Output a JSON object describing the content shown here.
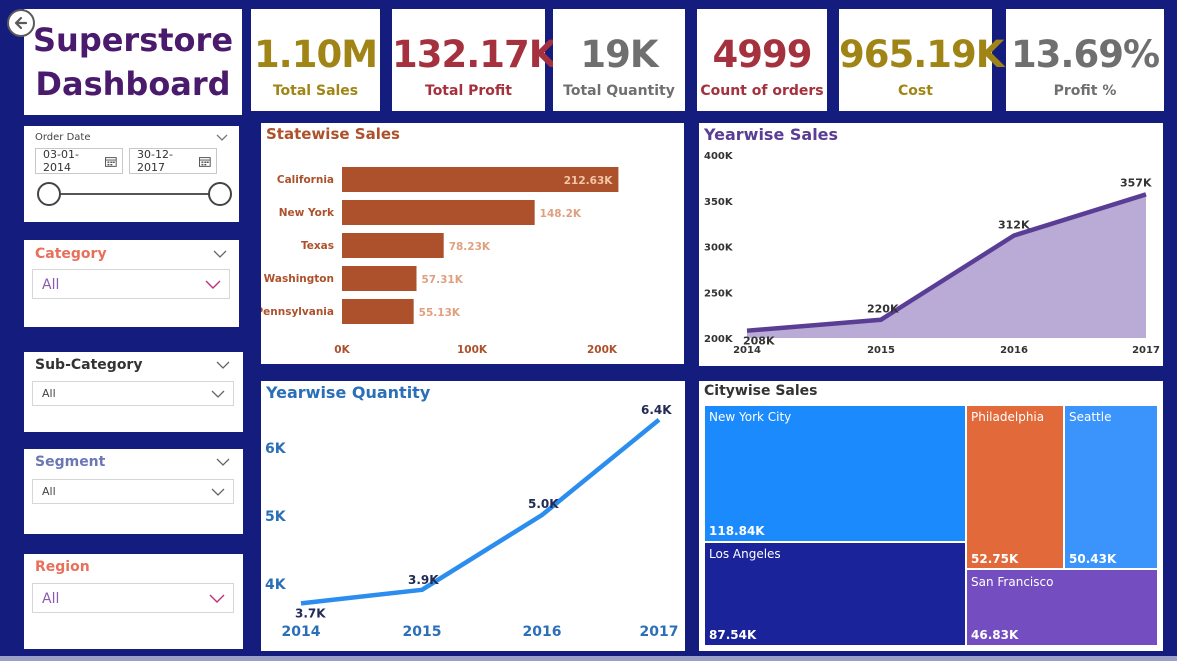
{
  "title": {
    "line1": "Superstore",
    "line2": "Dashboard"
  },
  "kpis": [
    {
      "value": "1.10M",
      "label": "Total Sales",
      "color": "#a08516"
    },
    {
      "value": "132.17K",
      "label": "Total Profit",
      "color": "#a4313d"
    },
    {
      "value": "19K",
      "label": "Total Quantity",
      "color": "#6f6f6f"
    },
    {
      "value": "4999",
      "label": "Count of orders",
      "color": "#a4313d"
    },
    {
      "value": "965.19K",
      "label": "Cost",
      "color": "#a08516"
    },
    {
      "value": "13.69%",
      "label": "Profit %",
      "color": "#6f6f6f"
    }
  ],
  "date_slicer": {
    "title": "Order Date",
    "start": "03-01-2014",
    "end": "30-12-2017"
  },
  "slicers": {
    "category": {
      "title": "Category",
      "value": "All",
      "color": "#e8705a"
    },
    "subcategory": {
      "title": "Sub-Category",
      "value": "All",
      "color": "#333333"
    },
    "segment": {
      "title": "Segment",
      "value": "All",
      "color": "#6b78b4"
    },
    "region": {
      "title": "Region",
      "value": "All",
      "color": "#e8705a"
    }
  },
  "icons": {
    "back": "back-arrow-icon",
    "calendar": "calendar-icon",
    "dropdown": "chevron-down-icon"
  },
  "charts": {
    "statewise": {
      "title": "Statewise Sales"
    },
    "yearwise_sales": {
      "title": "Yearwise Sales"
    },
    "yearwise_quantity": {
      "title": "Yearwise Quantity"
    },
    "citywise": {
      "title": "Citywise Sales"
    }
  },
  "chart_data": [
    {
      "type": "bar",
      "orientation": "horizontal",
      "title": "Statewise Sales",
      "categories": [
        "California",
        "New York",
        "Texas",
        "Washington",
        "Pennsylvania"
      ],
      "values": [
        212.63,
        148.2,
        78.23,
        57.31,
        55.13
      ],
      "value_labels": [
        "212.63K",
        "148.2K",
        "78.23K",
        "57.31K",
        "55.13K"
      ],
      "xticks": [
        "0K",
        "100K",
        "200K"
      ],
      "xlim": [
        0,
        230
      ],
      "color": "#ac512b"
    },
    {
      "type": "area",
      "title": "Yearwise Sales",
      "x": [
        "2014",
        "2015",
        "2016",
        "2017"
      ],
      "values": [
        208,
        220,
        312,
        357
      ],
      "value_labels": [
        "208K",
        "220K",
        "312K",
        "357K"
      ],
      "yticks": [
        "200K",
        "250K",
        "300K",
        "350K",
        "400K"
      ],
      "ylim": [
        200,
        400
      ],
      "line_color": "#5a3d94",
      "fill_color": "#b9abd6"
    },
    {
      "type": "line",
      "title": "Yearwise Quantity",
      "x": [
        "2014",
        "2015",
        "2016",
        "2017"
      ],
      "values": [
        3.7,
        3.9,
        5.0,
        6.4
      ],
      "value_labels": [
        "3.7K",
        "3.9K",
        "5.0K",
        "6.4K"
      ],
      "yticks": [
        "4K",
        "5K",
        "6K"
      ],
      "ylim": [
        3.5,
        6.6
      ],
      "line_color": "#2b8ded"
    },
    {
      "type": "treemap",
      "title": "Citywise Sales",
      "items": [
        {
          "name": "New York City",
          "value": "118.84K",
          "color": "#1a8afc"
        },
        {
          "name": "Los Angeles",
          "value": "87.54K",
          "color": "#1a239a"
        },
        {
          "name": "Philadelphia",
          "value": "52.75K",
          "color": "#e26a3a"
        },
        {
          "name": "Seattle",
          "value": "50.43K",
          "color": "#3b94fb"
        },
        {
          "name": "San Francisco",
          "value": "46.83K",
          "color": "#744ec0"
        }
      ]
    }
  ]
}
